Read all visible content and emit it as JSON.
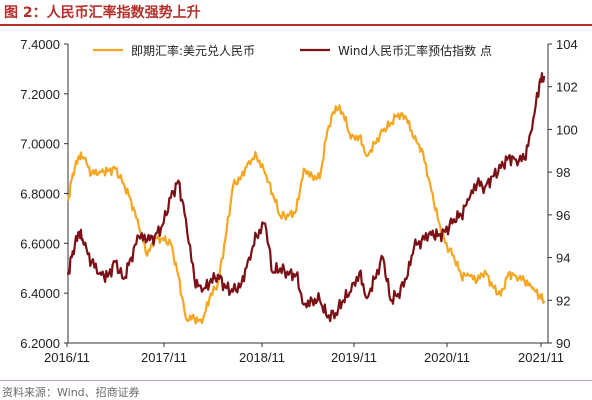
{
  "header": {
    "title": "图 2：人民币汇率指数强势上升"
  },
  "footer": {
    "source": "资料来源：Wind、招商证券"
  },
  "chart_data": {
    "type": "line",
    "title": "图 2：人民币汇率指数强势上升",
    "x_ticks": [
      "2016/11",
      "2017/11",
      "2018/11",
      "2019/11",
      "2020/11",
      "2021/11"
    ],
    "y_left": {
      "lim": [
        6.2,
        7.4
      ],
      "ticks": [
        "6.2000",
        "6.4000",
        "6.6000",
        "6.8000",
        "7.0000",
        "7.2000",
        "7.4000"
      ]
    },
    "y_right": {
      "lim": [
        90,
        104
      ],
      "ticks": [
        "90",
        "92",
        "94",
        "96",
        "98",
        "100",
        "102",
        "104"
      ]
    },
    "legend_position": "top",
    "grid": false,
    "series": [
      {
        "name": "即期汇率:美元兑人民币",
        "axis": "left",
        "color": "#f5a623",
        "x": [
          2016.83,
          2016.88,
          2016.95,
          2017.0,
          2017.08,
          2017.17,
          2017.25,
          2017.33,
          2017.42,
          2017.5,
          2017.58,
          2017.67,
          2017.75,
          2017.83,
          2017.92,
          2018.0,
          2018.08,
          2018.17,
          2018.25,
          2018.33,
          2018.42,
          2018.5,
          2018.58,
          2018.67,
          2018.75,
          2018.83,
          2018.92,
          2019.0,
          2019.08,
          2019.17,
          2019.25,
          2019.33,
          2019.42,
          2019.5,
          2019.58,
          2019.67,
          2019.75,
          2019.83,
          2019.92,
          2020.0,
          2020.08,
          2020.17,
          2020.25,
          2020.33,
          2020.42,
          2020.5,
          2020.58,
          2020.67,
          2020.75,
          2020.83,
          2020.92,
          2021.0,
          2021.08,
          2021.17,
          2021.25,
          2021.33,
          2021.42,
          2021.5,
          2021.58,
          2021.67,
          2021.75,
          2021.83,
          2021.88
        ],
        "values": [
          6.77,
          6.88,
          6.95,
          6.94,
          6.88,
          6.89,
          6.89,
          6.9,
          6.84,
          6.77,
          6.67,
          6.55,
          6.62,
          6.62,
          6.6,
          6.47,
          6.3,
          6.3,
          6.28,
          6.38,
          6.44,
          6.62,
          6.83,
          6.87,
          6.93,
          6.95,
          6.88,
          6.8,
          6.71,
          6.71,
          6.73,
          6.9,
          6.87,
          6.86,
          7.05,
          7.15,
          7.12,
          7.02,
          7.03,
          6.95,
          7.0,
          7.05,
          7.08,
          7.12,
          7.1,
          7.02,
          6.98,
          6.84,
          6.7,
          6.6,
          6.55,
          6.47,
          6.47,
          6.45,
          6.49,
          6.43,
          6.39,
          6.48,
          6.47,
          6.45,
          6.42,
          6.39,
          6.37
        ]
      },
      {
        "name": "Wind人民币汇率预估指数 点",
        "axis": "right",
        "color": "#7b1116",
        "x": [
          2016.83,
          2016.88,
          2016.95,
          2017.0,
          2017.08,
          2017.17,
          2017.25,
          2017.33,
          2017.42,
          2017.5,
          2017.58,
          2017.67,
          2017.75,
          2017.83,
          2017.92,
          2018.0,
          2018.08,
          2018.17,
          2018.25,
          2018.33,
          2018.42,
          2018.5,
          2018.58,
          2018.67,
          2018.75,
          2018.83,
          2018.92,
          2019.0,
          2019.08,
          2019.17,
          2019.25,
          2019.33,
          2019.42,
          2019.5,
          2019.58,
          2019.67,
          2019.75,
          2019.83,
          2019.92,
          2020.0,
          2020.08,
          2020.17,
          2020.25,
          2020.33,
          2020.42,
          2020.5,
          2020.58,
          2020.67,
          2020.75,
          2020.83,
          2020.92,
          2021.0,
          2021.08,
          2021.17,
          2021.25,
          2021.33,
          2021.42,
          2021.5,
          2021.58,
          2021.67,
          2021.75,
          2021.83,
          2021.88
        ],
        "values": [
          93.2,
          94.3,
          95.2,
          94.6,
          93.8,
          93.3,
          93.1,
          93.8,
          93.0,
          94.0,
          95.0,
          94.8,
          95.0,
          95.5,
          96.8,
          97.6,
          95.8,
          93.0,
          92.4,
          92.8,
          93.2,
          92.6,
          92.4,
          92.8,
          94.0,
          95.0,
          95.6,
          93.3,
          93.5,
          93.2,
          93.2,
          91.8,
          92.0,
          92.0,
          91.2,
          91.4,
          92.0,
          92.4,
          93.3,
          92.1,
          93.0,
          94.0,
          92.0,
          92.3,
          93.0,
          94.5,
          94.8,
          95.2,
          95.0,
          95.2,
          95.8,
          96.0,
          96.7,
          97.5,
          97.3,
          97.8,
          98.2,
          98.7,
          98.6,
          98.6,
          100.0,
          102.2,
          102.5
        ]
      }
    ]
  }
}
